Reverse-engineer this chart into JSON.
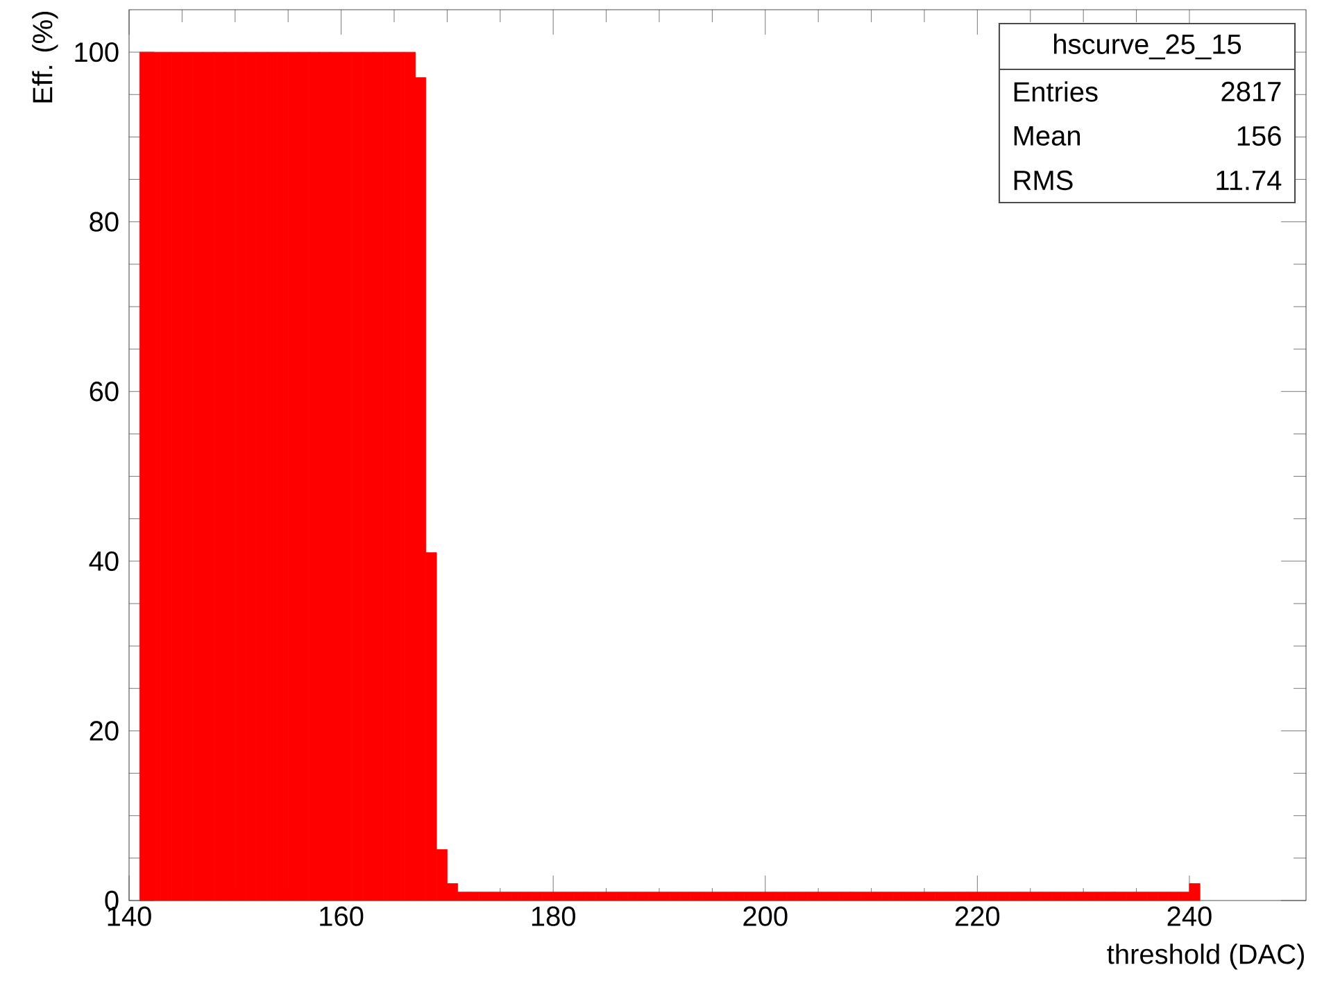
{
  "chart_data": {
    "type": "histogram",
    "xlabel": "threshold (DAC)",
    "ylabel": "Eff. (%)",
    "bins": [
      141,
      142,
      143,
      144,
      145,
      146,
      147,
      148,
      149,
      150,
      151,
      152,
      153,
      154,
      155,
      156,
      157,
      158,
      159,
      160,
      161,
      162,
      163,
      164,
      165,
      166,
      167,
      168,
      169,
      170,
      171,
      172,
      173,
      174,
      175,
      176,
      177,
      178,
      179,
      180,
      181,
      182,
      183,
      184,
      185,
      186,
      187,
      188,
      189,
      190,
      191,
      192,
      193,
      194,
      195,
      196,
      197,
      198,
      199,
      200,
      201,
      202,
      203,
      204,
      205,
      206,
      207,
      208,
      209,
      210,
      211,
      212,
      213,
      214,
      215,
      216,
      217,
      218,
      219,
      220,
      221,
      222,
      223,
      224,
      225,
      226,
      227,
      228,
      229,
      230,
      231,
      232,
      233,
      234,
      235,
      236,
      237,
      238,
      239,
      240,
      241
    ],
    "values": [
      100,
      100,
      100,
      100,
      100,
      100,
      100,
      100,
      100,
      100,
      100,
      100,
      100,
      100,
      100,
      100,
      100,
      100,
      100,
      100,
      100,
      100,
      100,
      100,
      100,
      100,
      97,
      41,
      6,
      2,
      1,
      1,
      1,
      1,
      1,
      1,
      1,
      1,
      1,
      1,
      1,
      1,
      1,
      1,
      1,
      1,
      1,
      1,
      1,
      1,
      1,
      1,
      1,
      1,
      1,
      1,
      1,
      1,
      1,
      1,
      1,
      1,
      1,
      1,
      1,
      1,
      1,
      1,
      1,
      1,
      1,
      1,
      1,
      1,
      1,
      1,
      1,
      1,
      1,
      1,
      1,
      1,
      1,
      1,
      1,
      1,
      1,
      1,
      1,
      1,
      1,
      1,
      1,
      1,
      1,
      1,
      1,
      1,
      1,
      2
    ],
    "color": "#ff0000",
    "xlim": [
      140,
      251
    ],
    "ylim": [
      0,
      105
    ],
    "xticks": [
      140,
      160,
      180,
      200,
      220,
      240
    ],
    "yticks": [
      0,
      20,
      40,
      60,
      80,
      100
    ],
    "annotations": [
      "hscurve_25_15",
      "Entries",
      "2817",
      "Mean",
      "156",
      "RMS",
      "11.74"
    ]
  }
}
